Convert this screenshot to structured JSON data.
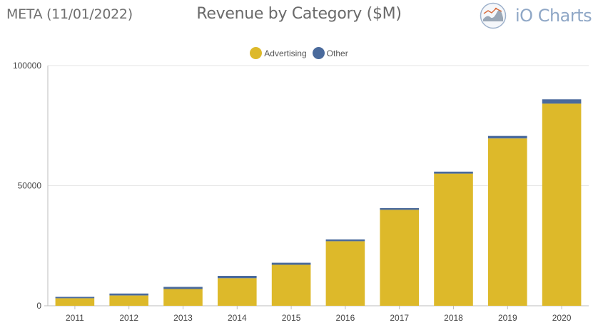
{
  "header": {
    "ticker": "META (11/01/2022)",
    "title": "Revenue by Category ($M)",
    "brand": "iO Charts"
  },
  "colors": {
    "advertising": "#ddb92a",
    "other": "#4a6a9c"
  },
  "chart_data": {
    "type": "bar",
    "stacked": true,
    "title": "Revenue by Category ($M)",
    "xlabel": "",
    "ylabel": "",
    "ylim": [
      0,
      100000
    ],
    "yticks": [
      "0",
      "50000",
      "100000"
    ],
    "grid": true,
    "legend_position": "top",
    "categories": [
      "2011",
      "2012",
      "2013",
      "2014",
      "2015",
      "2016",
      "2017",
      "2018",
      "2019",
      "2020"
    ],
    "series": [
      {
        "name": "Advertising",
        "color": "#ddb92a",
        "values": [
          3150,
          4280,
          6990,
          11490,
          17080,
          26890,
          39940,
          55010,
          69660,
          84170
        ]
      },
      {
        "name": "Other",
        "color": "#4a6a9c",
        "values": [
          560,
          810,
          880,
          980,
          850,
          750,
          710,
          830,
          1040,
          1800
        ]
      }
    ]
  }
}
